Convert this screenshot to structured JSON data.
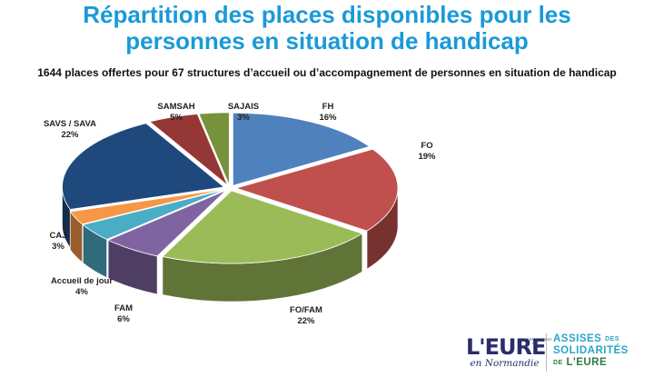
{
  "title_line1": "Répartition des places disponibles pour les",
  "title_line2": "personnes en situation de handicap",
  "subtitle": "1644 places offertes pour 67 structures d’accueil ou d’accompagnement de personnes en situation de handicap",
  "chart_data": {
    "type": "pie",
    "style": "3d-exploded",
    "title": "",
    "slices": [
      {
        "label": "FH",
        "value_label": "16%",
        "value": 16,
        "color": "#4f81bd"
      },
      {
        "label": "FO",
        "value_label": "19%",
        "value": 19,
        "color": "#c0504d"
      },
      {
        "label": "FO/FAM",
        "value_label": "22%",
        "value": 22,
        "color": "#9bbb59"
      },
      {
        "label": "FAM",
        "value_label": "6%",
        "value": 6,
        "color": "#8064a2"
      },
      {
        "label": "Accueil de jour",
        "value_label": "4%",
        "value": 4,
        "color": "#4bacc6"
      },
      {
        "label": "CAJ",
        "value_label": "3%",
        "value": 3,
        "color": "#f79646"
      },
      {
        "label": "SAVS / SAVA",
        "value_label": "22%",
        "value": 22,
        "color": "#1f497d"
      },
      {
        "label": "SAMSAH",
        "value_label": "5%",
        "value": 5,
        "color": "#953735"
      },
      {
        "label": "SAJAIS",
        "value_label": "3%",
        "value": 3,
        "color": "#76923c"
      }
    ]
  },
  "logos": {
    "eure_dept": "DÉPARTEMENT DE",
    "eure_main": "L'EURE",
    "eure_sub": "en Normandie",
    "assises_1": "ASSISES",
    "assises_des": "DES",
    "assises_2": "SOLIDARITÉS",
    "assises_de": "DE",
    "assises_3": "L'EURE"
  }
}
